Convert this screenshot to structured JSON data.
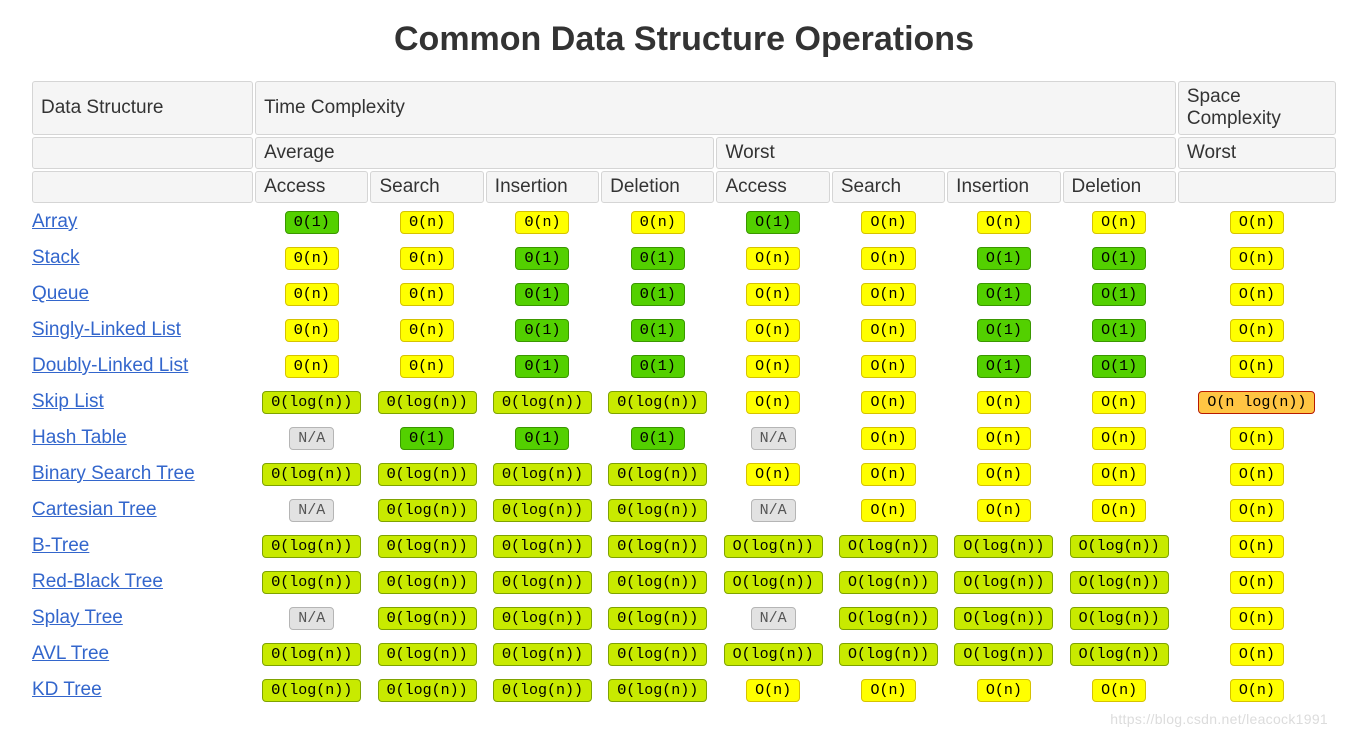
{
  "title": "Common Data Structure Operations",
  "watermark": "https://blog.csdn.net/leacock1991",
  "colors": {
    "green": {
      "bg": "#53d000",
      "border": "#3a9700",
      "text": "#000000"
    },
    "yellowg": {
      "bg": "#c8ea00",
      "border": "#7fa300",
      "text": "#000000"
    },
    "yellow": {
      "bg": "#ffff00",
      "border": "#d6c300",
      "text": "#000000"
    },
    "orange": {
      "bg": "#ffc543",
      "border": "#b81a00",
      "text": "#000000"
    },
    "gray": {
      "bg": "#e2e2e2",
      "border": "#b5b5b5",
      "text": "#555555"
    }
  },
  "headers": {
    "ds": "Data Structure",
    "time": "Time Complexity",
    "space": "Space Complexity",
    "average": "Average",
    "worst": "Worst",
    "ops": [
      "Access",
      "Search",
      "Insertion",
      "Deletion"
    ]
  },
  "rows": [
    {
      "name": "Array",
      "avg": [
        {
          "t": "Θ(1)",
          "c": "green"
        },
        {
          "t": "Θ(n)",
          "c": "yellow"
        },
        {
          "t": "Θ(n)",
          "c": "yellow"
        },
        {
          "t": "Θ(n)",
          "c": "yellow"
        }
      ],
      "worst": [
        {
          "t": "O(1)",
          "c": "green"
        },
        {
          "t": "O(n)",
          "c": "yellow"
        },
        {
          "t": "O(n)",
          "c": "yellow"
        },
        {
          "t": "O(n)",
          "c": "yellow"
        }
      ],
      "space": {
        "t": "O(n)",
        "c": "yellow"
      }
    },
    {
      "name": "Stack",
      "avg": [
        {
          "t": "Θ(n)",
          "c": "yellow"
        },
        {
          "t": "Θ(n)",
          "c": "yellow"
        },
        {
          "t": "Θ(1)",
          "c": "green"
        },
        {
          "t": "Θ(1)",
          "c": "green"
        }
      ],
      "worst": [
        {
          "t": "O(n)",
          "c": "yellow"
        },
        {
          "t": "O(n)",
          "c": "yellow"
        },
        {
          "t": "O(1)",
          "c": "green"
        },
        {
          "t": "O(1)",
          "c": "green"
        }
      ],
      "space": {
        "t": "O(n)",
        "c": "yellow"
      }
    },
    {
      "name": "Queue",
      "avg": [
        {
          "t": "Θ(n)",
          "c": "yellow"
        },
        {
          "t": "Θ(n)",
          "c": "yellow"
        },
        {
          "t": "Θ(1)",
          "c": "green"
        },
        {
          "t": "Θ(1)",
          "c": "green"
        }
      ],
      "worst": [
        {
          "t": "O(n)",
          "c": "yellow"
        },
        {
          "t": "O(n)",
          "c": "yellow"
        },
        {
          "t": "O(1)",
          "c": "green"
        },
        {
          "t": "O(1)",
          "c": "green"
        }
      ],
      "space": {
        "t": "O(n)",
        "c": "yellow"
      }
    },
    {
      "name": "Singly-Linked List",
      "avg": [
        {
          "t": "Θ(n)",
          "c": "yellow"
        },
        {
          "t": "Θ(n)",
          "c": "yellow"
        },
        {
          "t": "Θ(1)",
          "c": "green"
        },
        {
          "t": "Θ(1)",
          "c": "green"
        }
      ],
      "worst": [
        {
          "t": "O(n)",
          "c": "yellow"
        },
        {
          "t": "O(n)",
          "c": "yellow"
        },
        {
          "t": "O(1)",
          "c": "green"
        },
        {
          "t": "O(1)",
          "c": "green"
        }
      ],
      "space": {
        "t": "O(n)",
        "c": "yellow"
      }
    },
    {
      "name": "Doubly-Linked List",
      "avg": [
        {
          "t": "Θ(n)",
          "c": "yellow"
        },
        {
          "t": "Θ(n)",
          "c": "yellow"
        },
        {
          "t": "Θ(1)",
          "c": "green"
        },
        {
          "t": "Θ(1)",
          "c": "green"
        }
      ],
      "worst": [
        {
          "t": "O(n)",
          "c": "yellow"
        },
        {
          "t": "O(n)",
          "c": "yellow"
        },
        {
          "t": "O(1)",
          "c": "green"
        },
        {
          "t": "O(1)",
          "c": "green"
        }
      ],
      "space": {
        "t": "O(n)",
        "c": "yellow"
      }
    },
    {
      "name": "Skip List",
      "avg": [
        {
          "t": "Θ(log(n))",
          "c": "yellowg"
        },
        {
          "t": "Θ(log(n))",
          "c": "yellowg"
        },
        {
          "t": "Θ(log(n))",
          "c": "yellowg"
        },
        {
          "t": "Θ(log(n))",
          "c": "yellowg"
        }
      ],
      "worst": [
        {
          "t": "O(n)",
          "c": "yellow"
        },
        {
          "t": "O(n)",
          "c": "yellow"
        },
        {
          "t": "O(n)",
          "c": "yellow"
        },
        {
          "t": "O(n)",
          "c": "yellow"
        }
      ],
      "space": {
        "t": "O(n log(n))",
        "c": "orange"
      }
    },
    {
      "name": "Hash Table",
      "avg": [
        {
          "t": "N/A",
          "c": "gray"
        },
        {
          "t": "Θ(1)",
          "c": "green"
        },
        {
          "t": "Θ(1)",
          "c": "green"
        },
        {
          "t": "Θ(1)",
          "c": "green"
        }
      ],
      "worst": [
        {
          "t": "N/A",
          "c": "gray"
        },
        {
          "t": "O(n)",
          "c": "yellow"
        },
        {
          "t": "O(n)",
          "c": "yellow"
        },
        {
          "t": "O(n)",
          "c": "yellow"
        }
      ],
      "space": {
        "t": "O(n)",
        "c": "yellow"
      }
    },
    {
      "name": "Binary Search Tree",
      "avg": [
        {
          "t": "Θ(log(n))",
          "c": "yellowg"
        },
        {
          "t": "Θ(log(n))",
          "c": "yellowg"
        },
        {
          "t": "Θ(log(n))",
          "c": "yellowg"
        },
        {
          "t": "Θ(log(n))",
          "c": "yellowg"
        }
      ],
      "worst": [
        {
          "t": "O(n)",
          "c": "yellow"
        },
        {
          "t": "O(n)",
          "c": "yellow"
        },
        {
          "t": "O(n)",
          "c": "yellow"
        },
        {
          "t": "O(n)",
          "c": "yellow"
        }
      ],
      "space": {
        "t": "O(n)",
        "c": "yellow"
      }
    },
    {
      "name": "Cartesian Tree",
      "avg": [
        {
          "t": "N/A",
          "c": "gray"
        },
        {
          "t": "Θ(log(n))",
          "c": "yellowg"
        },
        {
          "t": "Θ(log(n))",
          "c": "yellowg"
        },
        {
          "t": "Θ(log(n))",
          "c": "yellowg"
        }
      ],
      "worst": [
        {
          "t": "N/A",
          "c": "gray"
        },
        {
          "t": "O(n)",
          "c": "yellow"
        },
        {
          "t": "O(n)",
          "c": "yellow"
        },
        {
          "t": "O(n)",
          "c": "yellow"
        }
      ],
      "space": {
        "t": "O(n)",
        "c": "yellow"
      }
    },
    {
      "name": "B-Tree",
      "avg": [
        {
          "t": "Θ(log(n))",
          "c": "yellowg"
        },
        {
          "t": "Θ(log(n))",
          "c": "yellowg"
        },
        {
          "t": "Θ(log(n))",
          "c": "yellowg"
        },
        {
          "t": "Θ(log(n))",
          "c": "yellowg"
        }
      ],
      "worst": [
        {
          "t": "O(log(n))",
          "c": "yellowg"
        },
        {
          "t": "O(log(n))",
          "c": "yellowg"
        },
        {
          "t": "O(log(n))",
          "c": "yellowg"
        },
        {
          "t": "O(log(n))",
          "c": "yellowg"
        }
      ],
      "space": {
        "t": "O(n)",
        "c": "yellow"
      }
    },
    {
      "name": "Red-Black Tree",
      "avg": [
        {
          "t": "Θ(log(n))",
          "c": "yellowg"
        },
        {
          "t": "Θ(log(n))",
          "c": "yellowg"
        },
        {
          "t": "Θ(log(n))",
          "c": "yellowg"
        },
        {
          "t": "Θ(log(n))",
          "c": "yellowg"
        }
      ],
      "worst": [
        {
          "t": "O(log(n))",
          "c": "yellowg"
        },
        {
          "t": "O(log(n))",
          "c": "yellowg"
        },
        {
          "t": "O(log(n))",
          "c": "yellowg"
        },
        {
          "t": "O(log(n))",
          "c": "yellowg"
        }
      ],
      "space": {
        "t": "O(n)",
        "c": "yellow"
      }
    },
    {
      "name": "Splay Tree",
      "avg": [
        {
          "t": "N/A",
          "c": "gray"
        },
        {
          "t": "Θ(log(n))",
          "c": "yellowg"
        },
        {
          "t": "Θ(log(n))",
          "c": "yellowg"
        },
        {
          "t": "Θ(log(n))",
          "c": "yellowg"
        }
      ],
      "worst": [
        {
          "t": "N/A",
          "c": "gray"
        },
        {
          "t": "O(log(n))",
          "c": "yellowg"
        },
        {
          "t": "O(log(n))",
          "c": "yellowg"
        },
        {
          "t": "O(log(n))",
          "c": "yellowg"
        }
      ],
      "space": {
        "t": "O(n)",
        "c": "yellow"
      }
    },
    {
      "name": "AVL Tree",
      "avg": [
        {
          "t": "Θ(log(n))",
          "c": "yellowg"
        },
        {
          "t": "Θ(log(n))",
          "c": "yellowg"
        },
        {
          "t": "Θ(log(n))",
          "c": "yellowg"
        },
        {
          "t": "Θ(log(n))",
          "c": "yellowg"
        }
      ],
      "worst": [
        {
          "t": "O(log(n))",
          "c": "yellowg"
        },
        {
          "t": "O(log(n))",
          "c": "yellowg"
        },
        {
          "t": "O(log(n))",
          "c": "yellowg"
        },
        {
          "t": "O(log(n))",
          "c": "yellowg"
        }
      ],
      "space": {
        "t": "O(n)",
        "c": "yellow"
      }
    },
    {
      "name": "KD Tree",
      "avg": [
        {
          "t": "Θ(log(n))",
          "c": "yellowg"
        },
        {
          "t": "Θ(log(n))",
          "c": "yellowg"
        },
        {
          "t": "Θ(log(n))",
          "c": "yellowg"
        },
        {
          "t": "Θ(log(n))",
          "c": "yellowg"
        }
      ],
      "worst": [
        {
          "t": "O(n)",
          "c": "yellow"
        },
        {
          "t": "O(n)",
          "c": "yellow"
        },
        {
          "t": "O(n)",
          "c": "yellow"
        },
        {
          "t": "O(n)",
          "c": "yellow"
        }
      ],
      "space": {
        "t": "O(n)",
        "c": "yellow"
      }
    }
  ]
}
